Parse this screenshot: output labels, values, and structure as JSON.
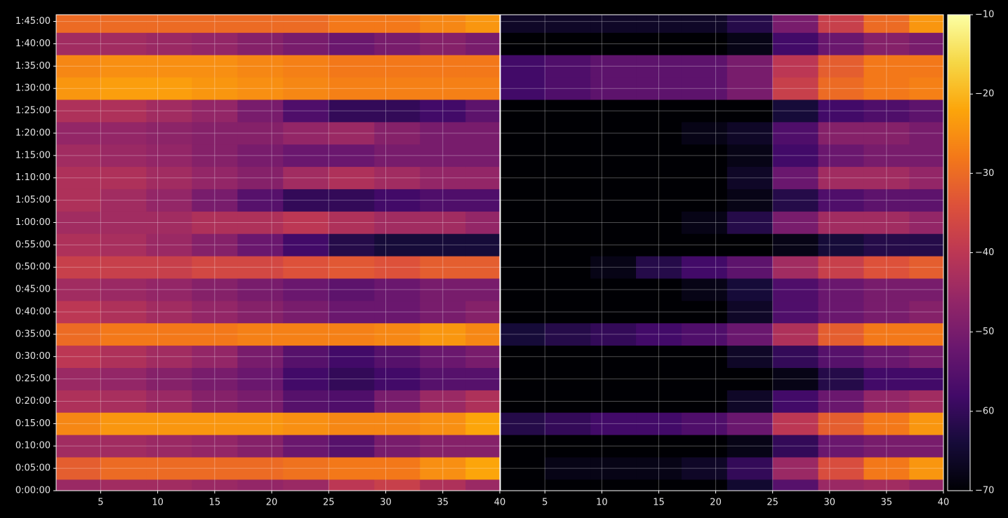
{
  "chart_data": [
    {
      "type": "heatmap",
      "xlim": [
        1.1,
        40
      ],
      "xticks": [
        5,
        10,
        15,
        20,
        25,
        30,
        35,
        40
      ],
      "ylim": [
        0,
        6390
      ],
      "yticks": [
        {
          "value": 0,
          "label": "0:00:00"
        },
        {
          "value": 300,
          "label": "0:05:00"
        },
        {
          "value": 600,
          "label": "0:10:00"
        },
        {
          "value": 900,
          "label": "0:15:00"
        },
        {
          "value": 1200,
          "label": "0:20:00"
        },
        {
          "value": 1500,
          "label": "0:25:00"
        },
        {
          "value": 1800,
          "label": "0:30:00"
        },
        {
          "value": 2100,
          "label": "0:35:00"
        },
        {
          "value": 2400,
          "label": "0:40:00"
        },
        {
          "value": 2700,
          "label": "0:45:00"
        },
        {
          "value": 3000,
          "label": "0:50:00"
        },
        {
          "value": 3300,
          "label": "0:55:00"
        },
        {
          "value": 3600,
          "label": "1:00:00"
        },
        {
          "value": 3900,
          "label": "1:05:00"
        },
        {
          "value": 4200,
          "label": "1:10:00"
        },
        {
          "value": 4500,
          "label": "1:15:00"
        },
        {
          "value": 4800,
          "label": "1:20:00"
        },
        {
          "value": 5100,
          "label": "1:25:00"
        },
        {
          "value": 5400,
          "label": "1:30:00"
        },
        {
          "value": 5700,
          "label": "1:35:00"
        },
        {
          "value": 6000,
          "label": "1:40:00"
        },
        {
          "value": 6300,
          "label": "1:45:00"
        }
      ],
      "grid": true,
      "xbins": [
        1.1,
        5,
        9,
        13,
        17,
        21,
        25,
        29,
        33,
        37,
        40
      ],
      "ybins": [
        0,
        150,
        450,
        750,
        1050,
        1350,
        1650,
        1950,
        2250,
        2550,
        2850,
        3150,
        3450,
        3750,
        4050,
        4350,
        4650,
        4950,
        5250,
        5550,
        5850,
        6150,
        6390
      ],
      "values": [
        [
          -45,
          -44,
          -44,
          -45,
          -46,
          -45,
          -40,
          -38,
          -42,
          -45
        ],
        [
          -32,
          -30,
          -30,
          -30,
          -30,
          -29,
          -28,
          -28,
          -25,
          -22
        ],
        [
          -44,
          -44,
          -45,
          -46,
          -48,
          -52,
          -55,
          -50,
          -48,
          -48
        ],
        [
          -26,
          -24,
          -24,
          -24,
          -24,
          -25,
          -26,
          -26,
          -25,
          -22
        ],
        [
          -42,
          -43,
          -45,
          -48,
          -50,
          -55,
          -56,
          -50,
          -45,
          -42
        ],
        [
          -45,
          -46,
          -48,
          -50,
          -52,
          -58,
          -60,
          -58,
          -55,
          -55
        ],
        [
          -40,
          -42,
          -44,
          -46,
          -50,
          -55,
          -58,
          -55,
          -52,
          -50
        ],
        [
          -30,
          -28,
          -28,
          -28,
          -27,
          -27,
          -27,
          -26,
          -24,
          -26
        ],
        [
          -40,
          -42,
          -44,
          -46,
          -48,
          -50,
          -52,
          -52,
          -50,
          -48
        ],
        [
          -44,
          -45,
          -46,
          -48,
          -50,
          -52,
          -54,
          -52,
          -50,
          -50
        ],
        [
          -38,
          -38,
          -38,
          -36,
          -36,
          -34,
          -33,
          -34,
          -32,
          -32
        ],
        [
          -42,
          -43,
          -45,
          -48,
          -52,
          -58,
          -62,
          -64,
          -64,
          -64
        ],
        [
          -44,
          -44,
          -44,
          -42,
          -42,
          -40,
          -42,
          -44,
          -44,
          -46
        ],
        [
          -42,
          -44,
          -46,
          -50,
          -55,
          -60,
          -60,
          -58,
          -56,
          -56
        ],
        [
          -42,
          -42,
          -44,
          -46,
          -48,
          -44,
          -42,
          -44,
          -46,
          -46
        ],
        [
          -44,
          -45,
          -46,
          -48,
          -50,
          -52,
          -52,
          -50,
          -50,
          -50
        ],
        [
          -46,
          -46,
          -47,
          -48,
          -48,
          -46,
          -45,
          -48,
          -50,
          -50
        ],
        [
          -42,
          -42,
          -44,
          -46,
          -50,
          -56,
          -60,
          -60,
          -58,
          -54
        ],
        [
          -24,
          -23,
          -23,
          -24,
          -25,
          -26,
          -27,
          -27,
          -27,
          -27
        ],
        [
          -26,
          -25,
          -25,
          -25,
          -26,
          -27,
          -28,
          -28,
          -28,
          -28
        ],
        [
          -44,
          -44,
          -45,
          -46,
          -48,
          -50,
          -52,
          -50,
          -48,
          -50
        ],
        [
          -30,
          -30,
          -30,
          -30,
          -30,
          -30,
          -28,
          -28,
          -26,
          -24
        ]
      ]
    },
    {
      "type": "heatmap",
      "xlim": [
        1.1,
        40
      ],
      "xticks": [
        5,
        10,
        15,
        20,
        25,
        30,
        35,
        40
      ],
      "ylim": [
        0,
        6390
      ],
      "grid": true,
      "xbins": [
        1.1,
        5,
        9,
        13,
        17,
        21,
        25,
        29,
        33,
        37,
        40
      ],
      "ybins": [
        0,
        150,
        450,
        750,
        1050,
        1350,
        1650,
        1950,
        2250,
        2550,
        2850,
        3150,
        3450,
        3750,
        4050,
        4350,
        4650,
        4950,
        5250,
        5550,
        5850,
        6150,
        6390
      ],
      "values": [
        [
          -70,
          -70,
          -70,
          -70,
          -70,
          -65,
          -55,
          -45,
          -44,
          -46
        ],
        [
          -70,
          -68,
          -68,
          -68,
          -66,
          -60,
          -45,
          -35,
          -28,
          -24
        ],
        [
          -70,
          -70,
          -70,
          -70,
          -70,
          -68,
          -60,
          -52,
          -50,
          -50
        ],
        [
          -62,
          -60,
          -58,
          -58,
          -56,
          -52,
          -40,
          -32,
          -28,
          -24
        ],
        [
          -70,
          -70,
          -70,
          -70,
          -70,
          -66,
          -58,
          -52,
          -46,
          -44
        ],
        [
          -70,
          -70,
          -70,
          -70,
          -70,
          -70,
          -68,
          -62,
          -58,
          -58
        ],
        [
          -70,
          -70,
          -70,
          -70,
          -70,
          -66,
          -60,
          -55,
          -52,
          -50
        ],
        [
          -64,
          -62,
          -60,
          -58,
          -56,
          -52,
          -42,
          -32,
          -28,
          -28
        ],
        [
          -70,
          -70,
          -70,
          -70,
          -70,
          -66,
          -56,
          -52,
          -50,
          -48
        ],
        [
          -70,
          -70,
          -70,
          -70,
          -68,
          -64,
          -56,
          -52,
          -50,
          -50
        ],
        [
          -70,
          -70,
          -68,
          -62,
          -58,
          -54,
          -44,
          -38,
          -34,
          -32
        ],
        [
          -70,
          -70,
          -70,
          -70,
          -70,
          -70,
          -68,
          -64,
          -62,
          -62
        ],
        [
          -70,
          -70,
          -70,
          -70,
          -68,
          -62,
          -50,
          -44,
          -44,
          -46
        ],
        [
          -70,
          -70,
          -70,
          -70,
          -70,
          -68,
          -62,
          -56,
          -54,
          -54
        ],
        [
          -70,
          -70,
          -70,
          -70,
          -70,
          -66,
          -52,
          -44,
          -44,
          -46
        ],
        [
          -70,
          -70,
          -70,
          -70,
          -70,
          -68,
          -58,
          -52,
          -50,
          -50
        ],
        [
          -70,
          -70,
          -70,
          -70,
          -68,
          -66,
          -56,
          -48,
          -48,
          -50
        ],
        [
          -70,
          -70,
          -70,
          -70,
          -70,
          -70,
          -64,
          -58,
          -56,
          -54
        ],
        [
          -58,
          -56,
          -54,
          -54,
          -54,
          -50,
          -38,
          -30,
          -28,
          -27
        ],
        [
          -58,
          -56,
          -54,
          -54,
          -54,
          -50,
          -40,
          -32,
          -28,
          -28
        ],
        [
          -70,
          -70,
          -70,
          -70,
          -70,
          -68,
          -58,
          -52,
          -48,
          -50
        ],
        [
          -66,
          -66,
          -66,
          -66,
          -66,
          -62,
          -50,
          -38,
          -30,
          -24
        ]
      ],
      "colorbar": {
        "colormap": "inferno",
        "lim": [
          -70,
          -10
        ],
        "ticks": [
          {
            "value": -70,
            "label": "−70"
          },
          {
            "value": -60,
            "label": "−60"
          },
          {
            "value": -50,
            "label": "−50"
          },
          {
            "value": -40,
            "label": "−40"
          },
          {
            "value": -30,
            "label": "−30"
          },
          {
            "value": -20,
            "label": "−20"
          },
          {
            "value": -10,
            "label": "−10"
          }
        ]
      }
    }
  ]
}
